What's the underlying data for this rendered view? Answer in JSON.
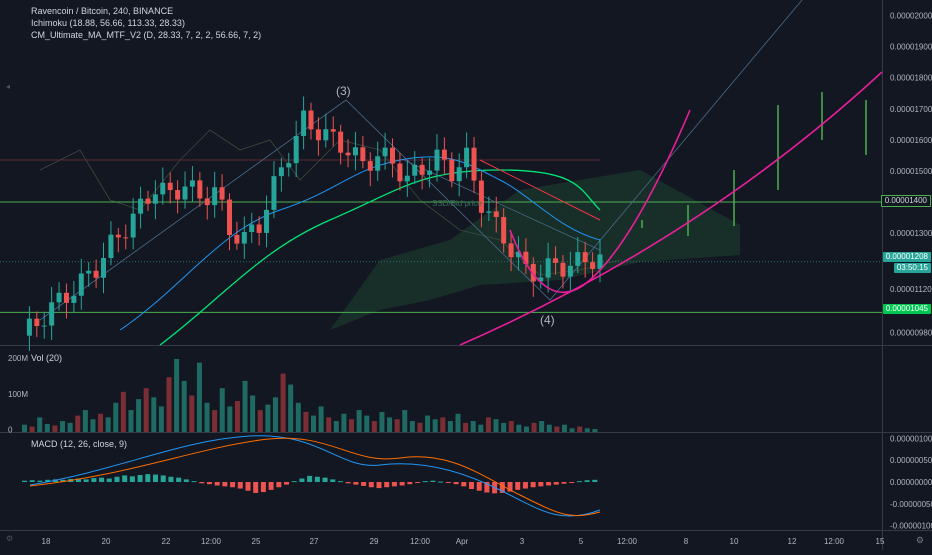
{
  "legend": {
    "title": "Ravencoin / Bitcoin, 240, BINANCE",
    "ichimoku": "Ichimoku (18.88, 56.66, 113.33, 28.33)",
    "ma": "CM_Ultimate_MA_MTF_V2 (D, 28.33, 7, 2, 2, 56.66, 7, 2)"
  },
  "annotations": {
    "wave3": "(3)",
    "wave4": "(4)",
    "ssd": "SSD/Bid price"
  },
  "price_axis": {
    "ticks": [
      "0.00002000",
      "0.00001900",
      "0.00001800",
      "0.00001700",
      "0.00001600",
      "0.00001500",
      "0.00001300",
      "0.00001120",
      "0.00000980"
    ],
    "tag_resistance": "0.00001400",
    "tag_current": "0.00001208",
    "countdown": "03:50:15",
    "tag_support": "0.00001045"
  },
  "volume": {
    "label": "Vol (20)",
    "ticks": [
      "200M",
      "100M",
      "0"
    ]
  },
  "macd": {
    "label": "MACD (12, 26, close, 9)",
    "ticks": [
      "0.00000100",
      "0.00000050",
      "0.00000000",
      "-0.00000050",
      "-0.00000100"
    ]
  },
  "time_axis": {
    "labels": [
      "18",
      "20",
      "22",
      "12:00",
      "25",
      "27",
      "29",
      "12:00",
      "Apr",
      "3",
      "5",
      "12:00",
      "8",
      "10",
      "12",
      "12:00",
      "15"
    ]
  },
  "colors": {
    "background": "#131722",
    "up": "#26a69a",
    "down": "#ef5350",
    "projection": "#4caf50",
    "parabola": "#e91e9b",
    "ma_fast": "#2196f3",
    "ma_slow": "#00e676",
    "ma_red": "#f23645",
    "resistance": "#4caf50",
    "current_tag": "#26a69a",
    "support_tag": "#00c853"
  },
  "chart_data": [
    {
      "type": "candlestick",
      "title": "Ravencoin / Bitcoin, 240, BINANCE",
      "ylim": [
        9.4e-06,
        2.05e-05
      ],
      "horizontal_lines": {
        "resistance": 1.4e-05,
        "support": 1.045e-05,
        "current": 1.208e-05
      },
      "close_path": [
        [
          0,
          9.7e-06
        ],
        [
          2,
          1.01e-05
        ],
        [
          4,
          1.06e-05
        ],
        [
          6,
          1.1e-05
        ],
        [
          8,
          1.14e-05
        ],
        [
          10,
          1.19e-05
        ],
        [
          12,
          1.26e-05
        ],
        [
          14,
          1.32e-05
        ],
        [
          16,
          1.38e-05
        ],
        [
          18,
          1.45e-05
        ],
        [
          20,
          1.42e-05
        ],
        [
          22,
          1.46e-05
        ],
        [
          24,
          1.41e-05
        ],
        [
          26,
          1.44e-05
        ],
        [
          28,
          1.31e-05
        ],
        [
          30,
          1.28e-05
        ],
        [
          32,
          1.33e-05
        ],
        [
          34,
          1.45e-05
        ],
        [
          36,
          1.56e-05
        ],
        [
          38,
          1.66e-05
        ],
        [
          40,
          1.63e-05
        ],
        [
          42,
          1.6e-05
        ],
        [
          44,
          1.57e-05
        ],
        [
          46,
          1.52e-05
        ],
        [
          48,
          1.55e-05
        ],
        [
          50,
          1.53e-05
        ],
        [
          52,
          1.47e-05
        ],
        [
          54,
          1.51e-05
        ],
        [
          56,
          1.54e-05
        ],
        [
          58,
          1.5e-05
        ],
        [
          60,
          1.54e-05
        ],
        [
          62,
          1.4e-05
        ],
        [
          64,
          1.32e-05
        ],
        [
          66,
          1.25e-05
        ],
        [
          68,
          1.18e-05
        ],
        [
          70,
          1.17e-05
        ],
        [
          72,
          1.2e-05
        ],
        [
          74,
          1.19e-05
        ],
        [
          76,
          1.22e-05
        ],
        [
          78,
          1.21e-05
        ]
      ]
    },
    {
      "type": "bar",
      "title": "Vol (20)",
      "ylim": [
        0,
        230000000
      ],
      "values": [
        20,
        15,
        40,
        22,
        18,
        30,
        25,
        45,
        60,
        35,
        50,
        40,
        80,
        110,
        60,
        90,
        120,
        95,
        70,
        150,
        200,
        140,
        100,
        190,
        80,
        60,
        120,
        70,
        85,
        140,
        100,
        60,
        75,
        95,
        160,
        130,
        80,
        55,
        45,
        70,
        40,
        30,
        50,
        35,
        60,
        45,
        30,
        55,
        40,
        35,
        60,
        30,
        25,
        45,
        35,
        40,
        30,
        50,
        25,
        30,
        20,
        40,
        35,
        25,
        30,
        20,
        15,
        25,
        30,
        20,
        15,
        20,
        10,
        15,
        10,
        8
      ]
    },
    {
      "type": "bar",
      "title": "MACD (12, 26, close, 9)",
      "ylim": [
        -1.1e-06,
        1.1e-06
      ],
      "values": [
        0.03,
        0.04,
        0.03,
        0.05,
        0.06,
        0.05,
        0.07,
        0.08,
        0.06,
        0.09,
        0.1,
        0.08,
        0.12,
        0.15,
        0.13,
        0.16,
        0.18,
        0.17,
        0.15,
        0.12,
        0.1,
        0.06,
        0.02,
        -0.03,
        -0.05,
        -0.08,
        -0.1,
        -0.12,
        -0.15,
        -0.2,
        -0.25,
        -0.23,
        -0.18,
        -0.12,
        -0.06,
        0.02,
        0.08,
        0.14,
        0.12,
        0.1,
        0.06,
        0.02,
        -0.03,
        -0.06,
        -0.09,
        -0.12,
        -0.14,
        -0.12,
        -0.1,
        -0.08,
        -0.05,
        -0.02,
        0.02,
        0.03,
        0.01,
        -0.02,
        -0.05,
        -0.1,
        -0.16,
        -0.2,
        -0.24,
        -0.26,
        -0.25,
        -0.22,
        -0.18,
        -0.15,
        -0.12,
        -0.1,
        -0.08,
        -0.06,
        -0.04,
        -0.02,
        0.02,
        0.04,
        0.05
      ]
    }
  ]
}
